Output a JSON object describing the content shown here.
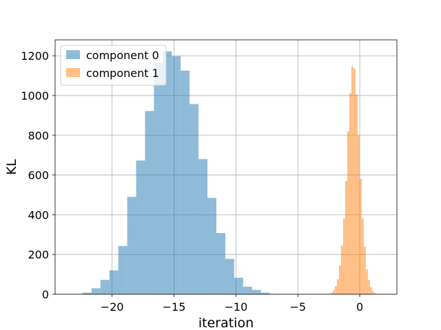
{
  "chart_data": {
    "type": "bar",
    "subtype": "histogram",
    "title": "",
    "xlabel": "iteration",
    "ylabel": "KL",
    "xlim": [
      -24.6,
      3.0
    ],
    "ylim": [
      0,
      1280
    ],
    "xticks": [
      -20,
      -15,
      -10,
      -5,
      0
    ],
    "xtick_labels": [
      "−20",
      "−15",
      "−10",
      "−5",
      "0"
    ],
    "yticks": [
      0,
      200,
      400,
      600,
      800,
      1000,
      1200
    ],
    "ytick_labels": [
      "0",
      "200",
      "400",
      "600",
      "800",
      "1000",
      "1200"
    ],
    "grid": true,
    "legend_position": "upper-left",
    "series": [
      {
        "name": "component 0",
        "color": "#1f77b4",
        "opacity": 0.5,
        "bin_start": -23.1,
        "bin_width": 0.72,
        "values": [
          1,
          8,
          30,
          72,
          120,
          243,
          490,
          673,
          922,
          1165,
          1222,
          1198,
          1125,
          957,
          680,
          485,
          308,
          178,
          83,
          38,
          22,
          8,
          2,
          1
        ]
      },
      {
        "name": "component 1",
        "color": "#ff7f0e",
        "opacity": 0.5,
        "bin_start": -2.35,
        "bin_width": 0.167,
        "values": [
          8,
          20,
          40,
          75,
          145,
          245,
          380,
          570,
          820,
          1010,
          1145,
          1135,
          1005,
          800,
          580,
          382,
          240,
          125,
          72,
          35,
          15,
          5
        ]
      }
    ]
  }
}
